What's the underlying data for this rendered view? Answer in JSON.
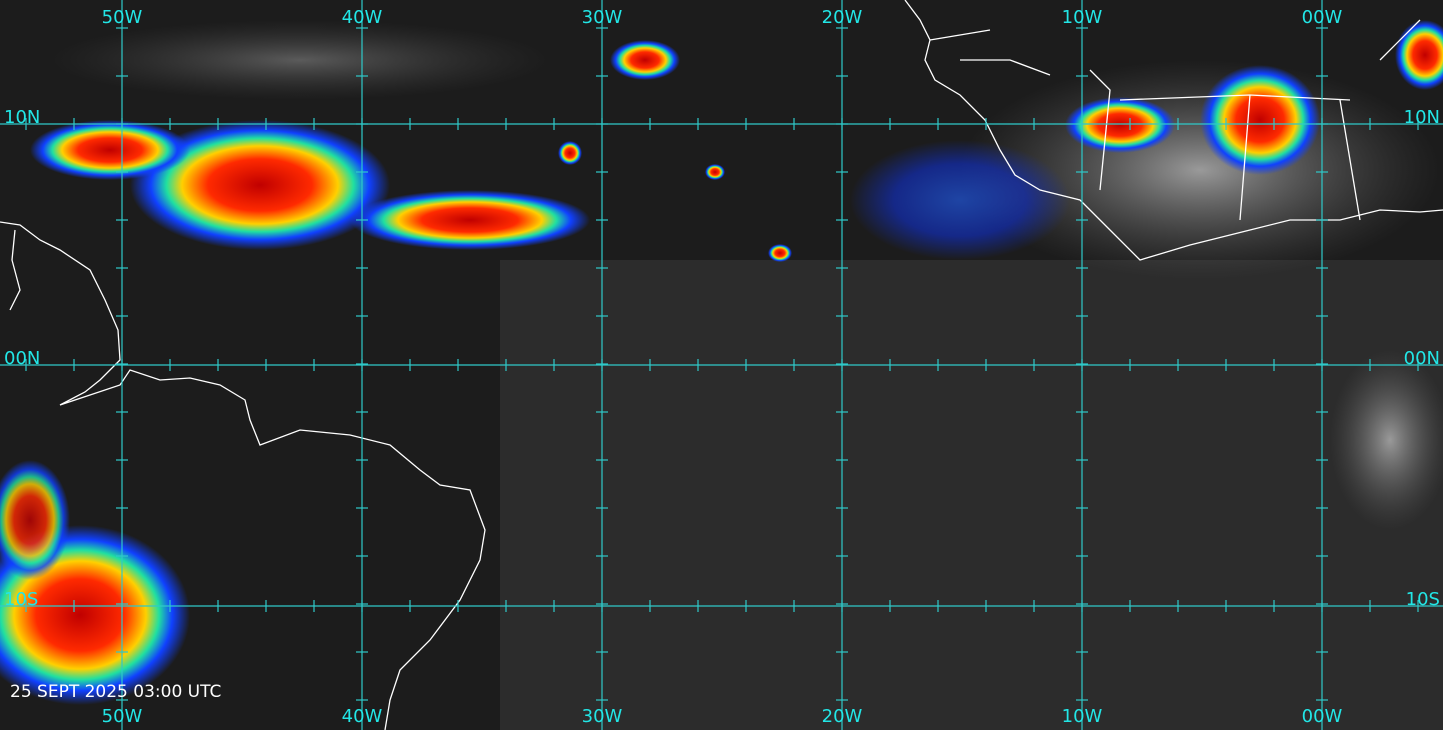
{
  "grid": {
    "top_labels": [
      "50W",
      "40W",
      "30W",
      "20W",
      "10W",
      "00W"
    ],
    "bottom_labels": [
      "50W",
      "40W",
      "30W",
      "20W",
      "10W",
      "00W"
    ],
    "left_labels": [
      "10N",
      "00N",
      "10S"
    ],
    "right_labels": [
      "10N",
      "00N",
      "10S"
    ]
  },
  "timestamp": "25 SEPT 2025 03:00 UTC"
}
